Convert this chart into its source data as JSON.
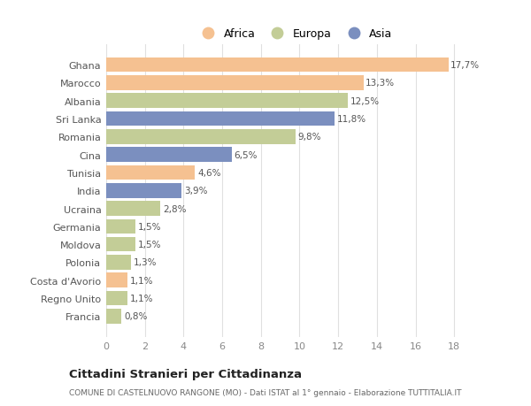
{
  "categories": [
    "Ghana",
    "Marocco",
    "Albania",
    "Sri Lanka",
    "Romania",
    "Cina",
    "Tunisia",
    "India",
    "Ucraina",
    "Germania",
    "Moldova",
    "Polonia",
    "Costa d'Avorio",
    "Regno Unito",
    "Francia"
  ],
  "values": [
    17.7,
    13.3,
    12.5,
    11.8,
    9.8,
    6.5,
    4.6,
    3.9,
    2.8,
    1.5,
    1.5,
    1.3,
    1.1,
    1.1,
    0.8
  ],
  "labels": [
    "17,7%",
    "13,3%",
    "12,5%",
    "11,8%",
    "9,8%",
    "6,5%",
    "4,6%",
    "3,9%",
    "2,8%",
    "1,5%",
    "1,5%",
    "1,3%",
    "1,1%",
    "1,1%",
    "0,8%"
  ],
  "continents": [
    "Africa",
    "Africa",
    "Europa",
    "Asia",
    "Europa",
    "Asia",
    "Africa",
    "Asia",
    "Europa",
    "Europa",
    "Europa",
    "Europa",
    "Africa",
    "Europa",
    "Europa"
  ],
  "colors": {
    "Africa": "#F5C191",
    "Europa": "#C3CD97",
    "Asia": "#7B8FBF"
  },
  "legend_labels": [
    "Africa",
    "Europa",
    "Asia"
  ],
  "legend_colors": [
    "#F5C191",
    "#C3CD97",
    "#7B8FBF"
  ],
  "xlim": [
    0,
    19.5
  ],
  "xticks": [
    0,
    2,
    4,
    6,
    8,
    10,
    12,
    14,
    16,
    18
  ],
  "title": "Cittadini Stranieri per Cittadinanza",
  "subtitle": "COMUNE DI CASTELNUOVO RANGONE (MO) - Dati ISTAT al 1° gennaio - Elaborazione TUTTITALIA.IT",
  "bg_color": "#FFFFFF",
  "grid_color": "#E0E0E0",
  "bar_height": 0.82,
  "label_fontsize": 7.5,
  "ytick_fontsize": 8,
  "xtick_fontsize": 8
}
